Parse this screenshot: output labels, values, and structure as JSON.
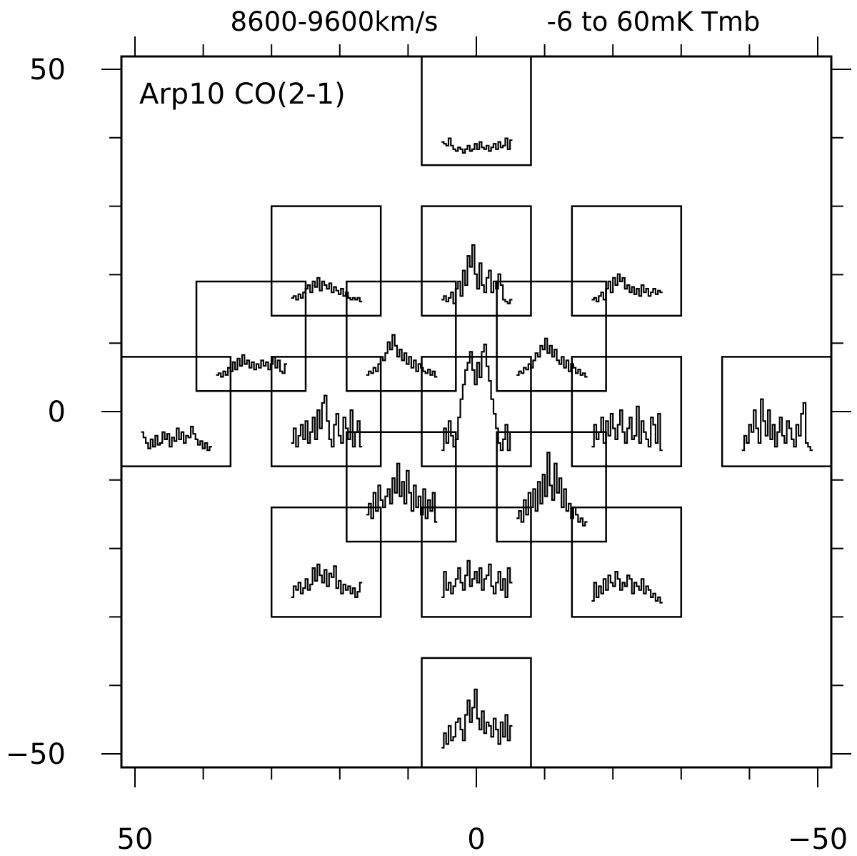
{
  "chart_data": {
    "type": "line",
    "chart_kind": "spectral-map-grid",
    "header_velocity_range": "8600-9600km/s",
    "header_temperature_range": "-6 to 60mK Tmb",
    "annotation": "Arp10 CO(2-1)",
    "velocity_range_kms": [
      8600,
      9600
    ],
    "tmb_range_mk": [
      -6,
      60
    ],
    "xlim": [
      52,
      -52
    ],
    "ylim": [
      -52,
      50
    ],
    "x_ticks_major": [
      50,
      0,
      -50
    ],
    "x_tick_labels": [
      "50",
      "0",
      "−50"
    ],
    "x_ticks_minor": [
      40,
      30,
      20,
      10,
      -10,
      -20,
      -30,
      -40
    ],
    "y_ticks_major": [
      50,
      0,
      -50
    ],
    "y_tick_labels": [
      "50",
      "0",
      "−50"
    ],
    "y_ticks_minor": [
      40,
      30,
      20,
      10,
      -10,
      -20,
      -30,
      -40
    ],
    "box_size_arcsec": 16,
    "grid": false,
    "spectra": [
      {
        "offset": [
          0,
          44
        ],
        "tmb": [
          6,
          5,
          4,
          8,
          4,
          2,
          1,
          3,
          2,
          0,
          2,
          4,
          1,
          2,
          5,
          2,
          6,
          3,
          2,
          4,
          1,
          3,
          5,
          2,
          6,
          3,
          4,
          8,
          2,
          7
        ]
      },
      {
        "offset": [
          22,
          22
        ],
        "tmb": [
          3,
          4,
          2,
          5,
          3,
          6,
          8,
          10,
          6,
          12,
          9,
          14,
          7,
          12,
          10,
          8,
          11,
          6,
          9,
          7,
          5,
          8,
          4,
          6,
          3,
          2,
          3,
          2,
          3,
          1
        ]
      },
      {
        "offset": [
          0,
          22
        ],
        "tmb": [
          2,
          4,
          1,
          3,
          6,
          0,
          8,
          12,
          4,
          18,
          10,
          26,
          20,
          32,
          16,
          8,
          22,
          10,
          6,
          14,
          18,
          6,
          12,
          8,
          16,
          10,
          2,
          1,
          0,
          2
        ]
      },
      {
        "offset": [
          -22,
          22
        ],
        "tmb": [
          2,
          3,
          1,
          4,
          6,
          2,
          8,
          12,
          6,
          14,
          10,
          16,
          12,
          14,
          8,
          10,
          6,
          9,
          5,
          8,
          4,
          10,
          6,
          8,
          4,
          6,
          8,
          5,
          7,
          6
        ]
      },
      {
        "offset": [
          33,
          11
        ],
        "tmb": [
          2,
          3,
          1,
          4,
          2,
          6,
          4,
          9,
          5,
          11,
          7,
          13,
          8,
          10,
          6,
          9,
          5,
          8,
          6,
          10,
          7,
          9,
          5,
          8,
          12,
          6,
          10,
          4,
          3,
          8
        ]
      },
      {
        "offset": [
          11,
          11
        ],
        "tmb": [
          2,
          4,
          3,
          6,
          4,
          8,
          12,
          10,
          14,
          20,
          16,
          24,
          18,
          12,
          16,
          10,
          14,
          8,
          12,
          6,
          10,
          4,
          8,
          6,
          4,
          3,
          5,
          2,
          4,
          1
        ]
      },
      {
        "offset": [
          -11,
          11
        ],
        "tmb": [
          2,
          4,
          3,
          6,
          5,
          8,
          6,
          10,
          14,
          12,
          18,
          16,
          22,
          14,
          18,
          12,
          16,
          10,
          8,
          12,
          6,
          10,
          4,
          8,
          6,
          3,
          5,
          2,
          3,
          1
        ]
      },
      {
        "offset": [
          44,
          0
        ],
        "tmb": [
          12,
          9,
          6,
          3,
          8,
          4,
          10,
          5,
          6,
          12,
          8,
          11,
          4,
          9,
          7,
          14,
          8,
          12,
          6,
          10,
          9,
          15,
          11,
          8,
          5,
          7,
          3,
          6,
          2,
          4
        ]
      },
      {
        "offset": [
          22,
          0
        ],
        "tmb": [
          6,
          14,
          4,
          10,
          16,
          8,
          18,
          6,
          12,
          20,
          8,
          24,
          14,
          28,
          32,
          18,
          8,
          4,
          16,
          22,
          10,
          6,
          20,
          14,
          8,
          24,
          4,
          12,
          18,
          4
        ]
      },
      {
        "offset": [
          0,
          0
        ],
        "tmb": [
          2,
          14,
          6,
          18,
          10,
          4,
          8,
          20,
          30,
          38,
          46,
          50,
          56,
          46,
          38,
          50,
          42,
          56,
          60,
          48,
          40,
          30,
          22,
          14,
          6,
          2,
          8,
          16,
          2,
          12
        ]
      },
      {
        "offset": [
          -22,
          0
        ],
        "tmb": [
          4,
          16,
          8,
          12,
          20,
          6,
          18,
          10,
          22,
          14,
          8,
          16,
          24,
          12,
          6,
          14,
          20,
          8,
          10,
          26,
          6,
          18,
          12,
          8,
          4,
          20,
          16,
          6,
          22,
          2
        ]
      },
      {
        "offset": [
          -44,
          0
        ],
        "tmb": [
          2,
          10,
          6,
          16,
          12,
          24,
          14,
          6,
          30,
          18,
          10,
          24,
          8,
          16,
          4,
          12,
          20,
          10,
          6,
          18,
          14,
          8,
          4,
          16,
          10,
          22,
          28,
          6,
          4,
          2
        ]
      },
      {
        "offset": [
          11,
          -11
        ],
        "tmb": [
          8,
          14,
          6,
          20,
          10,
          24,
          16,
          12,
          18,
          22,
          14,
          28,
          20,
          36,
          18,
          26,
          14,
          32,
          20,
          10,
          24,
          12,
          18,
          8,
          22,
          6,
          16,
          10,
          20,
          4
        ]
      },
      {
        "offset": [
          -11,
          -11
        ],
        "tmb": [
          6,
          10,
          4,
          16,
          8,
          20,
          12,
          22,
          10,
          26,
          14,
          30,
          18,
          42,
          24,
          16,
          36,
          20,
          28,
          12,
          22,
          10,
          14,
          6,
          12,
          8,
          4,
          6,
          2,
          4
        ]
      },
      {
        "offset": [
          22,
          -22
        ],
        "tmb": [
          4,
          10,
          8,
          12,
          6,
          9,
          14,
          8,
          11,
          20,
          13,
          22,
          16,
          12,
          19,
          10,
          17,
          15,
          21,
          9,
          13,
          6,
          11,
          8,
          10,
          6,
          9,
          4,
          7,
          12
        ]
      },
      {
        "offset": [
          0,
          -22
        ],
        "tmb": [
          4,
          18,
          8,
          12,
          6,
          10,
          14,
          20,
          12,
          8,
          16,
          24,
          10,
          14,
          18,
          12,
          20,
          8,
          14,
          16,
          22,
          10,
          6,
          12,
          18,
          8,
          14,
          4,
          20,
          12
        ]
      },
      {
        "offset": [
          -22,
          -22
        ],
        "tmb": [
          2,
          12,
          4,
          10,
          6,
          14,
          8,
          16,
          12,
          10,
          18,
          14,
          8,
          12,
          10,
          16,
          14,
          6,
          12,
          10,
          8,
          14,
          6,
          10,
          8,
          4,
          6,
          2,
          4,
          1
        ]
      },
      {
        "offset": [
          0,
          -44
        ],
        "tmb": [
          4,
          12,
          6,
          16,
          8,
          10,
          18,
          20,
          14,
          8,
          22,
          30,
          18,
          26,
          36,
          20,
          14,
          24,
          12,
          18,
          16,
          10,
          20,
          14,
          6,
          18,
          10,
          22,
          8,
          16
        ]
      }
    ]
  }
}
